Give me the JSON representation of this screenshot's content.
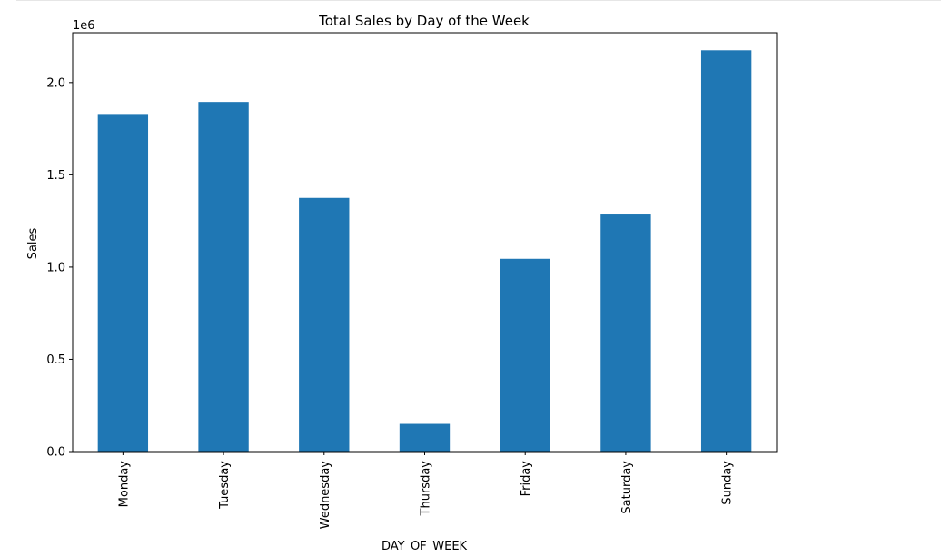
{
  "chart_data": {
    "type": "bar",
    "title": "Total Sales by Day of the Week",
    "xlabel": "DAY_OF_WEEK",
    "ylabel": "Sales",
    "y_offset_label": "1e6",
    "categories": [
      "Monday",
      "Tuesday",
      "Wednesday",
      "Thursday",
      "Friday",
      "Saturday",
      "Sunday"
    ],
    "values": [
      1825000,
      1895000,
      1375000,
      150000,
      1045000,
      1285000,
      2175000
    ],
    "ylim": [
      0,
      2270000
    ],
    "yticks": [
      0,
      500000,
      1000000,
      1500000,
      2000000
    ],
    "ytick_labels": [
      "0.0",
      "0.5",
      "1.0",
      "1.5",
      "2.0"
    ],
    "grid": false,
    "bar_color": "#1f77b4"
  }
}
